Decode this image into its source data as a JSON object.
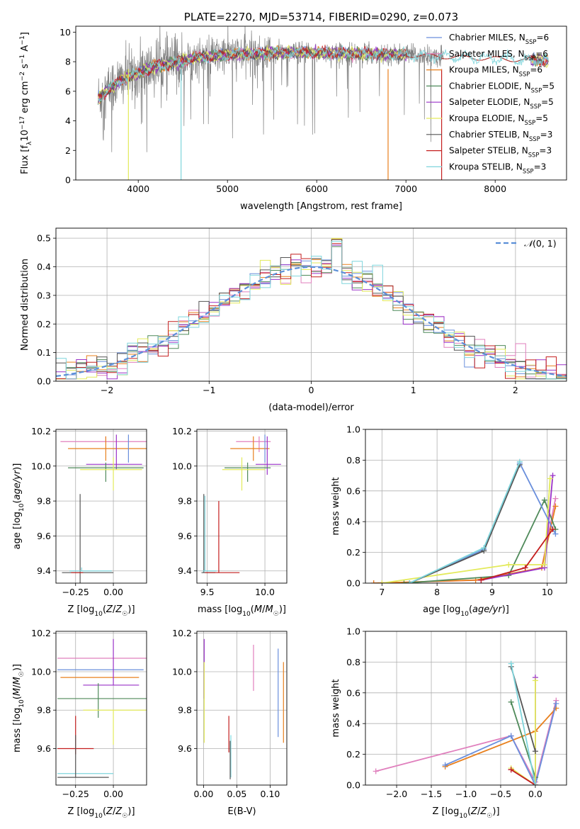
{
  "chart_data": [
    {
      "id": "spectrum",
      "type": "line",
      "title": "PLATE=2270, MJD=53714, FIBERID=0290, z=0.073",
      "xlabel": "wavelength [Angstrom, rest frame]",
      "ylabel": "Flux [f_λ10^-17 erg cm^-2 s^-1 A^-1]",
      "xlim": [
        3300,
        8800
      ],
      "ylim": [
        0,
        10.4
      ],
      "xticks": [
        4000,
        5000,
        6000,
        7000,
        8000
      ],
      "yticks": [
        0,
        2,
        4,
        6,
        8,
        10
      ],
      "grid": false,
      "legend_position": "top-right",
      "series": [
        {
          "name": "Chabrier MILES, N_SSP=6",
          "color": "#6a8fdc"
        },
        {
          "name": "Salpeter MILES, N_SSP=6",
          "color": "#e07fbd"
        },
        {
          "name": "Kroupa MILES, N_SSP=6",
          "color": "#e8801e"
        },
        {
          "name": "Chabrier ELODIE, N_SSP=5",
          "color": "#4f8a5a"
        },
        {
          "name": "Salpeter ELODIE, N_SSP=5",
          "color": "#9a32c8"
        },
        {
          "name": "Kroupa ELODIE, N_SSP=5",
          "color": "#e3ea5a"
        },
        {
          "name": "Chabrier STELIB, N_SSP=3",
          "color": "#555555"
        },
        {
          "name": "Salpeter STELIB, N_SSP=3",
          "color": "#c41f1f"
        },
        {
          "name": "Kroupa STELIB, N_SSP=3",
          "color": "#7fd5dc"
        }
      ],
      "continuum": [
        [
          3550,
          5.5
        ],
        [
          3700,
          6.3
        ],
        [
          3850,
          6.9
        ],
        [
          4000,
          7.2
        ],
        [
          4200,
          7.7
        ],
        [
          4400,
          7.9
        ],
        [
          4600,
          8.2
        ],
        [
          4800,
          8.35
        ],
        [
          5000,
          8.5
        ],
        [
          5300,
          8.55
        ],
        [
          5600,
          8.6
        ],
        [
          6000,
          8.6
        ],
        [
          6400,
          8.55
        ],
        [
          6800,
          8.5
        ],
        [
          7200,
          8.4
        ],
        [
          7600,
          8.3
        ],
        [
          8000,
          8.2
        ],
        [
          8400,
          8.1
        ],
        [
          8600,
          8.05
        ]
      ]
    },
    {
      "id": "residuals",
      "type": "line",
      "xlabel": "(data-model)/error",
      "ylabel": "Normed distribution",
      "xlim": [
        -2.5,
        2.5
      ],
      "ylim": [
        0,
        0.535
      ],
      "xticks": [
        -2,
        -1,
        0,
        1,
        2
      ],
      "yticks": [
        0.0,
        0.1,
        0.2,
        0.3,
        0.4,
        0.5
      ],
      "grid": true,
      "legend_position": "top-right",
      "reference": {
        "name": "𝒩(0,1)",
        "color": "#5b8fd8",
        "style": "dashed"
      },
      "bin_width": 0.1,
      "series_colors": [
        "#6a8fdc",
        "#e07fbd",
        "#e8801e",
        "#4f8a5a",
        "#9a32c8",
        "#e3ea5a",
        "#555555",
        "#c41f1f",
        "#7fd5dc"
      ]
    },
    {
      "id": "age-vs-Z",
      "type": "scatter",
      "xlabel": "Z [log10(Z/Z☉)]",
      "ylabel": "age  [log10(age/yr)]",
      "xlim": [
        -0.38,
        0.22
      ],
      "ylim": [
        9.33,
        10.21
      ],
      "xticks": [
        -0.25,
        0.0
      ],
      "yticks": [
        9.4,
        9.6,
        9.8,
        10.0,
        10.2
      ],
      "grid": true,
      "errorbars": [
        {
          "color": "#e07fbd",
          "x": -0.05,
          "y": 10.14,
          "xerr": [
            0.3,
            0.3
          ],
          "yerr": [
            0.0,
            0.03
          ]
        },
        {
          "color": "#e8801e",
          "x": -0.05,
          "y": 10.1,
          "xerr": [
            0.25,
            0.27
          ],
          "yerr": [
            0.07,
            0.07
          ]
        },
        {
          "color": "#9a32c8",
          "x": 0.02,
          "y": 10.01,
          "xerr": [
            0.2,
            0.17
          ],
          "yerr": [
            0.03,
            0.17
          ]
        },
        {
          "color": "#4f8a5a",
          "x": -0.05,
          "y": 9.99,
          "xerr": [
            0.25,
            0.25
          ],
          "yerr": [
            0.08,
            0.03
          ]
        },
        {
          "color": "#e3ea5a",
          "x": 0.0,
          "y": 9.98,
          "xerr": [
            0.22,
            0.19
          ],
          "yerr": [
            0.12,
            0.07
          ]
        },
        {
          "color": "#6a8fdc",
          "x": 0.1,
          "y": 10.12,
          "xerr": [
            0.0,
            0.0
          ],
          "yerr": [
            0.1,
            0.06
          ]
        },
        {
          "color": "#555555",
          "x": -0.22,
          "y": 9.39,
          "xerr": [
            0.12,
            0.22
          ],
          "yerr": [
            0.06,
            0.45
          ]
        },
        {
          "color": "#c41f1f",
          "x": -0.23,
          "y": 9.39,
          "xerr": [
            0.05,
            0.03
          ],
          "yerr": [
            0.0,
            0.0
          ]
        },
        {
          "color": "#7fd5dc",
          "x": -0.21,
          "y": 9.4,
          "xerr": [
            0.08,
            0.2
          ],
          "yerr": [
            0.0,
            0.02
          ]
        }
      ]
    },
    {
      "id": "age-vs-mass",
      "type": "scatter",
      "xlabel": "mass [log10(M/M☉)]",
      "ylabel": "",
      "xlim": [
        9.41,
        10.19
      ],
      "ylim": [
        9.33,
        10.21
      ],
      "xticks": [
        9.5,
        10.0
      ],
      "yticks": [
        9.4,
        9.6,
        9.8,
        10.0,
        10.2
      ],
      "grid": true,
      "errorbars": [
        {
          "color": "#e07fbd",
          "x": 9.95,
          "y": 10.14,
          "xerr": [
            0.2,
            0.1
          ],
          "yerr": [
            0.06,
            0.03
          ]
        },
        {
          "color": "#e8801e",
          "x": 9.9,
          "y": 10.1,
          "xerr": [
            0.2,
            0.14
          ],
          "yerr": [
            0.07,
            0.07
          ]
        },
        {
          "color": "#9a32c8",
          "x": 10.02,
          "y": 10.01,
          "xerr": [
            0.1,
            0.12
          ],
          "yerr": [
            0.06,
            0.16
          ]
        },
        {
          "color": "#4f8a5a",
          "x": 9.85,
          "y": 9.99,
          "xerr": [
            0.2,
            0.2
          ],
          "yerr": [
            0.08,
            0.03
          ]
        },
        {
          "color": "#e3ea5a",
          "x": 9.8,
          "y": 9.98,
          "xerr": [
            0.17,
            0.2
          ],
          "yerr": [
            0.12,
            0.07
          ]
        },
        {
          "color": "#6a8fdc",
          "x": 10.0,
          "y": 10.12,
          "xerr": [
            0.0,
            0.0
          ],
          "yerr": [
            0.1,
            0.06
          ]
        },
        {
          "color": "#555555",
          "x": 9.47,
          "y": 9.39,
          "xerr": [
            0.02,
            0.1
          ],
          "yerr": [
            0.0,
            0.45
          ]
        },
        {
          "color": "#c41f1f",
          "x": 9.6,
          "y": 9.39,
          "xerr": [
            0.12,
            0.18
          ],
          "yerr": [
            0.0,
            0.41
          ]
        },
        {
          "color": "#7fd5dc",
          "x": 9.48,
          "y": 9.4,
          "xerr": [
            0.02,
            0.1
          ],
          "yerr": [
            0.0,
            0.43
          ]
        }
      ]
    },
    {
      "id": "weight-vs-age",
      "type": "line",
      "xlabel": "age  [log10(age/yr)]",
      "ylabel": "mass weight",
      "xlim": [
        6.7,
        10.35
      ],
      "ylim": [
        0,
        1.0
      ],
      "xticks": [
        7,
        8,
        9,
        10
      ],
      "yticks": [
        0.0,
        0.2,
        0.4,
        0.6,
        0.8,
        1.0
      ],
      "grid": true,
      "series": [
        {
          "color": "#e07fbd",
          "x": [
            6.85,
            8.8,
            9.9,
            10.15
          ],
          "y": [
            0.0,
            0.02,
            0.1,
            0.55
          ]
        },
        {
          "color": "#e8801e",
          "x": [
            6.85,
            8.7,
            9.9,
            10.15
          ],
          "y": [
            0.0,
            0.02,
            0.1,
            0.5
          ]
        },
        {
          "color": "#4f8a5a",
          "x": [
            7.4,
            9.3,
            9.95,
            10.15
          ],
          "y": [
            0.0,
            0.05,
            0.54,
            0.35
          ]
        },
        {
          "color": "#9a32c8",
          "x": [
            8.8,
            9.95,
            10.1
          ],
          "y": [
            0.02,
            0.1,
            0.7
          ]
        },
        {
          "color": "#e3ea5a",
          "x": [
            7.0,
            9.3,
            9.95,
            10.05
          ],
          "y": [
            0.0,
            0.12,
            0.12,
            0.68
          ]
        },
        {
          "color": "#6a8fdc",
          "x": [
            7.5,
            8.85,
            9.5,
            10.15
          ],
          "y": [
            0.0,
            0.22,
            0.78,
            0.32
          ]
        },
        {
          "color": "#555555",
          "x": [
            7.5,
            8.85,
            9.5
          ],
          "y": [
            0.0,
            0.21,
            0.77
          ]
        },
        {
          "color": "#c41f1f",
          "x": [
            8.8,
            9.6,
            10.1
          ],
          "y": [
            0.02,
            0.1,
            0.35
          ]
        },
        {
          "color": "#7fd5dc",
          "x": [
            7.5,
            8.85,
            9.5
          ],
          "y": [
            0.0,
            0.23,
            0.79
          ]
        }
      ]
    },
    {
      "id": "mass-vs-Z",
      "type": "scatter",
      "xlabel": "Z [log10(Z/Z☉)]",
      "ylabel": "mass [log10(M/M☉)]",
      "xlim": [
        -0.38,
        0.22
      ],
      "ylim": [
        9.41,
        10.21
      ],
      "xticks": [
        -0.25,
        0.0
      ],
      "yticks": [
        9.6,
        9.8,
        10.0,
        10.2
      ],
      "grid": true,
      "errorbars": [
        {
          "color": "#e07fbd",
          "x": -0.1,
          "y": 10.07,
          "xerr": [
            0.27,
            0.33
          ],
          "yerr": [
            0.0,
            0.0
          ]
        },
        {
          "color": "#6a8fdc",
          "x": -0.1,
          "y": 10.01,
          "xerr": [
            0.27,
            0.3
          ],
          "yerr": [
            0.0,
            0.0
          ]
        },
        {
          "color": "#e8801e",
          "x": -0.05,
          "y": 9.97,
          "xerr": [
            0.3,
            0.22
          ],
          "yerr": [
            0.0,
            0.0
          ]
        },
        {
          "color": "#9a32c8",
          "x": 0.0,
          "y": 9.93,
          "xerr": [
            0.2,
            0.17
          ],
          "yerr": [
            0.0,
            0.24
          ]
        },
        {
          "color": "#4f8a5a",
          "x": -0.1,
          "y": 9.86,
          "xerr": [
            0.27,
            0.33
          ],
          "yerr": [
            0.1,
            0.08
          ]
        },
        {
          "color": "#e3ea5a",
          "x": 0.0,
          "y": 9.8,
          "xerr": [
            0.2,
            0.22
          ],
          "yerr": [
            0.18,
            0.0
          ]
        },
        {
          "color": "#c41f1f",
          "x": -0.25,
          "y": 9.6,
          "xerr": [
            0.12,
            0.12
          ],
          "yerr": [
            0.03,
            0.17
          ]
        },
        {
          "color": "#7fd5dc",
          "x": -0.25,
          "y": 9.47,
          "xerr": [
            0.12,
            0.25
          ],
          "yerr": [
            0.0,
            0.0
          ]
        },
        {
          "color": "#555555",
          "x": -0.25,
          "y": 9.45,
          "xerr": [
            0.12,
            0.22
          ],
          "yerr": [
            0.0,
            0.22
          ]
        }
      ]
    },
    {
      "id": "mass-vs-ebv",
      "type": "scatter",
      "xlabel": "E(B-V)",
      "ylabel": "",
      "xlim": [
        -0.01,
        0.125
      ],
      "ylim": [
        9.41,
        10.21
      ],
      "xticks": [
        0.0,
        0.05,
        0.1
      ],
      "yticks": [
        9.6,
        9.8,
        10.0,
        10.2
      ],
      "grid": true,
      "errorbars": [
        {
          "color": "#9a32c8",
          "x": 0.001,
          "y": 10.06,
          "yerr": [
            0.2,
            0.11
          ]
        },
        {
          "color": "#e3ea5a",
          "x": 0.001,
          "y": 9.8,
          "yerr": [
            0.17,
            0.25
          ]
        },
        {
          "color": "#e07fbd",
          "x": 0.075,
          "y": 9.97,
          "yerr": [
            0.07,
            0.17
          ]
        },
        {
          "color": "#6a8fdc",
          "x": 0.112,
          "y": 9.9,
          "yerr": [
            0.24,
            0.22
          ]
        },
        {
          "color": "#e8801e",
          "x": 0.12,
          "y": 9.84,
          "yerr": [
            0.21,
            0.21
          ]
        },
        {
          "color": "#c41f1f",
          "x": 0.038,
          "y": 9.68,
          "yerr": [
            0.1,
            0.09
          ]
        },
        {
          "color": "#7fd5dc",
          "x": 0.041,
          "y": 9.55,
          "yerr": [
            0.1,
            0.12
          ]
        },
        {
          "color": "#555555",
          "x": 0.04,
          "y": 9.52,
          "yerr": [
            0.08,
            0.12
          ]
        }
      ]
    },
    {
      "id": "weight-vs-Z",
      "type": "line",
      "xlabel": "Z [log10(Z/Z☉)]",
      "ylabel": "mass weight",
      "xlim": [
        -2.45,
        0.45
      ],
      "ylim": [
        0,
        1.0
      ],
      "xticks": [
        -2.0,
        -1.5,
        -1.0,
        -0.5,
        0.0
      ],
      "yticks": [
        0.0,
        0.2,
        0.4,
        0.6,
        0.8,
        1.0
      ],
      "grid": true,
      "series": [
        {
          "color": "#e07fbd",
          "x": [
            -2.3,
            -0.35,
            0.0,
            0.3
          ],
          "y": [
            0.09,
            0.32,
            0.02,
            0.55
          ]
        },
        {
          "color": "#e8801e",
          "x": [
            -1.3,
            0.0,
            0.3
          ],
          "y": [
            0.12,
            0.35,
            0.5
          ]
        },
        {
          "color": "#6a8fdc",
          "x": [
            -1.3,
            -0.35,
            0.0,
            0.3
          ],
          "y": [
            0.13,
            0.32,
            0.0,
            0.53
          ]
        },
        {
          "color": "#4f8a5a",
          "x": [
            -0.35,
            0.0
          ],
          "y": [
            0.54,
            0.05
          ]
        },
        {
          "color": "#9a32c8",
          "x": [
            -0.35,
            0.0,
            0.0
          ],
          "y": [
            0.1,
            0.0,
            0.7
          ]
        },
        {
          "color": "#e3ea5a",
          "x": [
            -0.35,
            0.0,
            0.0
          ],
          "y": [
            0.11,
            0.0,
            0.68
          ]
        },
        {
          "color": "#555555",
          "x": [
            -0.35,
            0.0
          ],
          "y": [
            0.77,
            0.22
          ]
        },
        {
          "color": "#c41f1f",
          "x": [
            -0.35,
            0.0
          ],
          "y": [
            0.1,
            0.0
          ]
        },
        {
          "color": "#7fd5dc",
          "x": [
            -0.35,
            0.0
          ],
          "y": [
            0.79,
            0.0
          ]
        }
      ]
    }
  ]
}
